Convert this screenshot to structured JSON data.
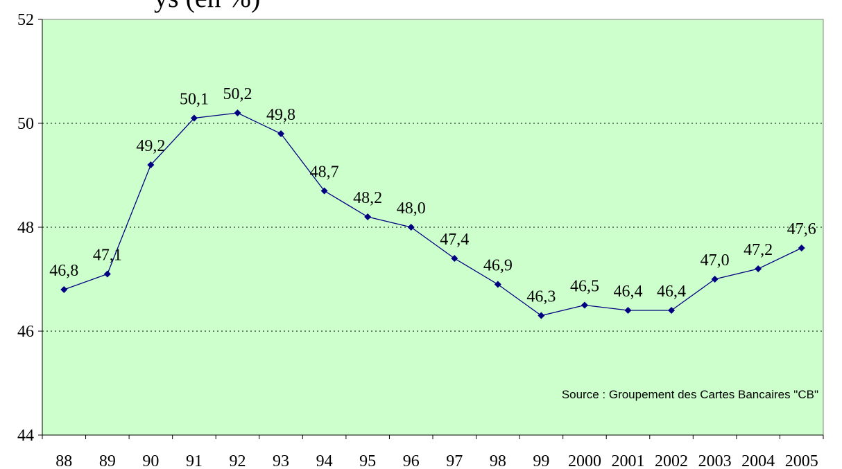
{
  "title_fragment": "ys (en %)",
  "source_note": "Source : Groupement des Cartes Bancaires \"CB\"",
  "colors": {
    "plot_background": "#CCFFCC",
    "series": "#000080"
  },
  "chart_data": {
    "type": "line",
    "categories": [
      "88",
      "89",
      "90",
      "91",
      "92",
      "93",
      "94",
      "95",
      "96",
      "97",
      "98",
      "99",
      "2000",
      "2001",
      "2002",
      "2003",
      "2004",
      "2005"
    ],
    "series": [
      {
        "values": [
          46.8,
          47.1,
          49.2,
          50.1,
          50.2,
          49.8,
          48.7,
          48.2,
          48.0,
          47.4,
          46.9,
          46.3,
          46.5,
          46.4,
          46.4,
          47.0,
          47.2,
          47.6
        ],
        "labels": [
          "46,8",
          "47,1",
          "49,2",
          "50,1",
          "50,2",
          "49,8",
          "48,7",
          "48,2",
          "48,0",
          "47,4",
          "46,9",
          "46,3",
          "46,5",
          "46,4",
          "46,4",
          "47,0",
          "47,2",
          "47,6"
        ]
      }
    ],
    "ylim": [
      44,
      52
    ],
    "yticks": [
      44,
      46,
      48,
      50,
      52
    ],
    "ytick_labels": [
      "44",
      "46",
      "48",
      "50",
      "52"
    ],
    "grid": "horizontal dotted",
    "marker": "diamond"
  }
}
